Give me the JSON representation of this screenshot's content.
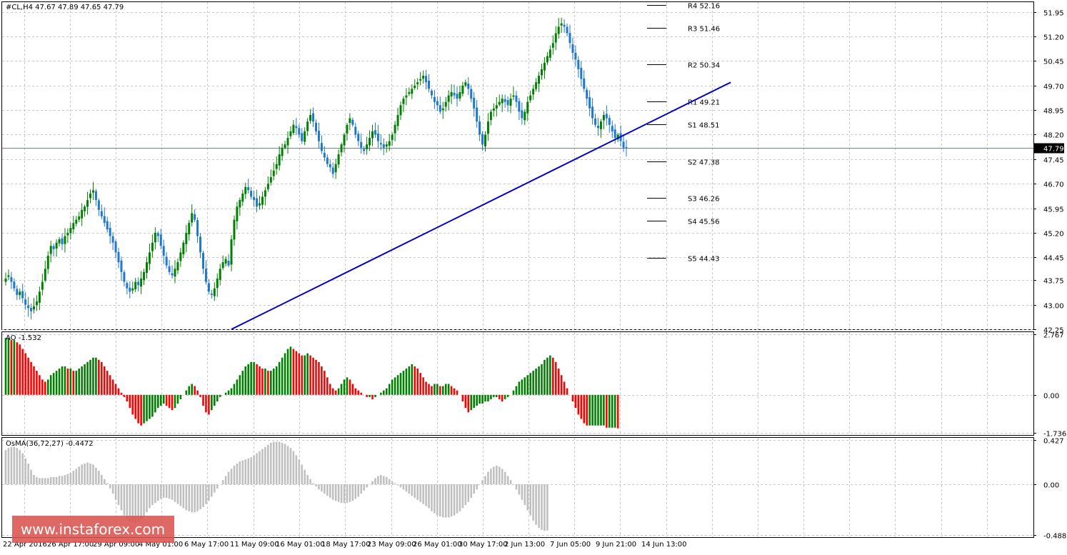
{
  "header": {
    "main_label": "#CL,H4  47.67 47.89 47.65 47.79",
    "ao_label": "AO -1.532",
    "osma_label": "OsMA(36,72,27) -0.4472"
  },
  "watermark": {
    "text": "www.instaforex.com"
  },
  "colors": {
    "bull": "#008000",
    "bear": "#1f77d0",
    "ao_up": "#008000",
    "ao_down": "#ff0000",
    "osma": "#c0c0c0",
    "trendline": "#0000c8",
    "grid": "#c8c8c8",
    "price_tag_bg": "#000000"
  },
  "chart_data": [
    {
      "type": "candlestick",
      "panel": "main",
      "symbol": "#CL",
      "timeframe": "H4",
      "last": {
        "open": 47.67,
        "high": 47.89,
        "low": 47.65,
        "close": 47.79
      },
      "current_price_label": "47.79",
      "y_ticks": [
        51.95,
        51.2,
        50.45,
        49.7,
        48.95,
        48.2,
        47.45,
        46.7,
        45.95,
        45.2,
        44.45,
        43.75,
        43.0,
        42.25
      ],
      "y_tick_labels": [
        "51.95",
        "51.20",
        "50.45",
        "49.70",
        "48.95",
        "48.20",
        "47.45",
        "46.70",
        "45.95",
        "45.20",
        "44.45",
        "43.75",
        "43.00",
        "42.25"
      ],
      "ylim": [
        42.25,
        52.25
      ],
      "x_ticks": [
        "22 Apr 2016",
        "26 Apr 17:00",
        "29 Apr 09:00",
        "4 May 01:00",
        "6 May 17:00",
        "11 May 09:00",
        "16 May 01:00",
        "18 May 17:00",
        "23 May 09:00",
        "26 May 01:00",
        "30 May 17:00",
        "2 Jun 13:00",
        "7 Jun 05:00",
        "9 Jun 21:00",
        "14 Jun 13:00"
      ],
      "closes": [
        43.8,
        43.9,
        43.7,
        43.5,
        43.3,
        43.4,
        43.2,
        43.0,
        42.9,
        42.8,
        42.95,
        43.1,
        43.4,
        43.7,
        44.1,
        44.5,
        44.8,
        44.7,
        44.9,
        45.0,
        44.85,
        45.1,
        45.2,
        45.35,
        45.5,
        45.6,
        45.7,
        45.9,
        46.0,
        46.2,
        46.4,
        46.5,
        46.2,
        45.9,
        45.7,
        45.5,
        45.3,
        45.1,
        44.9,
        44.6,
        44.3,
        44.0,
        43.7,
        43.5,
        43.4,
        43.5,
        43.7,
        43.6,
        43.8,
        44.0,
        44.3,
        44.6,
        44.9,
        45.2,
        45.1,
        44.8,
        44.5,
        44.2,
        44.0,
        43.9,
        44.1,
        44.3,
        44.6,
        44.9,
        45.2,
        45.5,
        45.8,
        45.6,
        45.1,
        44.6,
        44.1,
        43.7,
        43.4,
        43.3,
        43.5,
        43.8,
        44.1,
        44.3,
        44.4,
        44.2,
        45.0,
        45.6,
        46.0,
        46.2,
        46.4,
        46.6,
        46.5,
        46.3,
        46.2,
        46.0,
        46.1,
        46.3,
        46.5,
        46.7,
        46.9,
        47.1,
        47.3,
        47.6,
        47.8,
        47.9,
        48.1,
        48.3,
        48.5,
        48.4,
        48.2,
        48.0,
        48.3,
        48.6,
        48.8,
        48.6,
        48.3,
        48.0,
        47.7,
        47.5,
        47.3,
        47.2,
        47.0,
        47.3,
        47.6,
        47.9,
        48.2,
        48.5,
        48.7,
        48.5,
        48.2,
        48.0,
        47.8,
        47.7,
        47.9,
        48.1,
        48.3,
        48.2,
        48.0,
        47.9,
        47.8,
        47.9,
        48.0,
        48.2,
        48.5,
        48.8,
        49.1,
        49.3,
        49.4,
        49.5,
        49.6,
        49.7,
        49.8,
        49.9,
        50.0,
        49.8,
        49.6,
        49.4,
        49.2,
        49.1,
        48.9,
        49.0,
        49.2,
        49.4,
        49.5,
        49.4,
        49.3,
        49.5,
        49.7,
        49.8,
        49.6,
        49.3,
        49.0,
        48.6,
        48.2,
        47.9,
        48.2,
        48.6,
        48.9,
        49.0,
        49.1,
        49.2,
        49.3,
        49.2,
        49.1,
        49.3,
        49.4,
        49.2,
        48.9,
        48.7,
        48.9,
        49.2,
        49.4,
        49.6,
        49.8,
        50.0,
        50.2,
        50.4,
        50.6,
        50.8,
        51.0,
        51.3,
        51.5,
        51.6,
        51.5,
        51.3,
        51.0,
        50.7,
        50.5,
        50.2,
        49.9,
        49.6,
        49.3,
        49.0,
        48.7,
        48.5,
        48.4,
        48.6,
        48.8,
        48.7,
        48.5,
        48.3,
        48.1,
        48.2,
        48.0,
        47.8,
        47.79
      ]
    },
    {
      "type": "levels",
      "panel": "main",
      "levels": [
        {
          "label": "R4 52.16",
          "value": 52.16
        },
        {
          "label": "R3 51.46",
          "value": 51.46
        },
        {
          "label": "R2 50.34",
          "value": 50.34
        },
        {
          "label": "R1 49.21",
          "value": 49.21
        },
        {
          "label": "S1 48.51",
          "value": 48.51
        },
        {
          "label": "S2 47.38",
          "value": 47.38
        },
        {
          "label": "S3 46.26",
          "value": 46.26
        },
        {
          "label": "S4 45.56",
          "value": 45.56
        },
        {
          "label": "S5 44.43",
          "value": 44.43
        }
      ]
    },
    {
      "type": "line",
      "panel": "main",
      "role": "trendline",
      "points": [
        {
          "bar": 80,
          "value": 42.25
        },
        {
          "bar": 257,
          "value": 49.8
        }
      ]
    },
    {
      "type": "bar",
      "panel": "ao",
      "y_tick_labels": [
        "2.767",
        "0.00",
        "-1.736"
      ],
      "ylim": [
        -1.736,
        2.767
      ],
      "values": [
        2.6,
        2.6,
        2.5,
        2.5,
        2.4,
        2.3,
        2.1,
        1.9,
        1.7,
        1.5,
        1.3,
        1.1,
        0.9,
        0.7,
        0.6,
        0.7,
        0.9,
        1.0,
        1.1,
        1.2,
        1.3,
        1.3,
        1.2,
        1.2,
        1.1,
        1.1,
        1.2,
        1.3,
        1.4,
        1.5,
        1.6,
        1.7,
        1.7,
        1.6,
        1.5,
        1.3,
        1.1,
        0.9,
        0.7,
        0.5,
        0.3,
        0.1,
        -0.1,
        -0.3,
        -0.6,
        -0.9,
        -1.1,
        -1.3,
        -1.4,
        -1.3,
        -1.2,
        -1.1,
        -1.0,
        -0.8,
        -0.6,
        -0.5,
        -0.4,
        -0.5,
        -0.6,
        -0.7,
        -0.6,
        -0.4,
        -0.2,
        0.0,
        0.2,
        0.4,
        0.5,
        0.4,
        0.2,
        -0.1,
        -0.5,
        -0.8,
        -0.9,
        -0.7,
        -0.5,
        -0.3,
        -0.1,
        0.0,
        0.1,
        0.2,
        0.3,
        0.5,
        0.7,
        0.9,
        1.1,
        1.3,
        1.4,
        1.5,
        1.5,
        1.4,
        1.3,
        1.2,
        1.2,
        1.1,
        1.1,
        1.2,
        1.3,
        1.5,
        1.7,
        1.9,
        2.1,
        2.2,
        2.1,
        2.0,
        1.9,
        1.8,
        1.8,
        1.9,
        1.8,
        1.7,
        1.6,
        1.5,
        1.3,
        1.1,
        0.8,
        0.5,
        0.3,
        0.2,
        0.3,
        0.5,
        0.7,
        0.8,
        0.7,
        0.5,
        0.3,
        0.2,
        0.1,
        0.0,
        -0.1,
        -0.1,
        -0.2,
        -0.1,
        0.0,
        0.1,
        0.2,
        0.3,
        0.5,
        0.7,
        0.8,
        0.9,
        1.0,
        1.1,
        1.2,
        1.3,
        1.4,
        1.3,
        1.2,
        1.0,
        0.8,
        0.6,
        0.5,
        0.4,
        0.5,
        0.5,
        0.4,
        0.4,
        0.5,
        0.5,
        0.4,
        0.3,
        0.2,
        0.0,
        -0.3,
        -0.6,
        -0.8,
        -0.7,
        -0.6,
        -0.5,
        -0.4,
        -0.4,
        -0.3,
        -0.3,
        -0.2,
        -0.1,
        -0.1,
        -0.2,
        -0.3,
        -0.2,
        -0.1,
        0.0,
        0.2,
        0.4,
        0.6,
        0.7,
        0.8,
        0.9,
        1.0,
        1.1,
        1.2,
        1.3,
        1.4,
        1.6,
        1.7,
        1.8,
        1.7,
        1.5,
        1.2,
        0.9,
        0.6,
        0.3,
        0.0,
        -0.3,
        -0.6,
        -0.9,
        -1.1,
        -1.3,
        -1.4,
        -1.4,
        -1.4,
        -1.4,
        -1.4,
        -1.4,
        -1.4,
        -1.5,
        -1.5,
        -1.5,
        -1.5,
        -1.53
      ]
    },
    {
      "type": "bar",
      "panel": "osma",
      "y_tick_labels": [
        "0.427",
        "0.00",
        "-0.4888"
      ],
      "ylim": [
        -0.4888,
        0.427
      ],
      "values": [
        0.33,
        0.35,
        0.36,
        0.36,
        0.35,
        0.33,
        0.3,
        0.25,
        0.2,
        0.14,
        0.09,
        0.07,
        0.06,
        0.06,
        0.06,
        0.06,
        0.07,
        0.07,
        0.07,
        0.08,
        0.08,
        0.09,
        0.1,
        0.11,
        0.13,
        0.15,
        0.17,
        0.19,
        0.2,
        0.21,
        0.2,
        0.19,
        0.16,
        0.13,
        0.09,
        0.05,
        0.01,
        -0.04,
        -0.09,
        -0.15,
        -0.2,
        -0.25,
        -0.3,
        -0.33,
        -0.36,
        -0.37,
        -0.37,
        -0.36,
        -0.34,
        -0.31,
        -0.27,
        -0.23,
        -0.2,
        -0.18,
        -0.16,
        -0.14,
        -0.13,
        -0.13,
        -0.14,
        -0.15,
        -0.17,
        -0.19,
        -0.21,
        -0.23,
        -0.25,
        -0.26,
        -0.27,
        -0.27,
        -0.26,
        -0.24,
        -0.22,
        -0.19,
        -0.16,
        -0.12,
        -0.08,
        -0.04,
        0.0,
        0.04,
        0.08,
        0.12,
        0.15,
        0.18,
        0.2,
        0.22,
        0.23,
        0.24,
        0.25,
        0.26,
        0.28,
        0.3,
        0.32,
        0.34,
        0.36,
        0.38,
        0.4,
        0.41,
        0.41,
        0.41,
        0.4,
        0.39,
        0.37,
        0.35,
        0.32,
        0.28,
        0.24,
        0.19,
        0.14,
        0.09,
        0.05,
        0.01,
        -0.02,
        -0.05,
        -0.07,
        -0.09,
        -0.11,
        -0.13,
        -0.15,
        -0.16,
        -0.17,
        -0.18,
        -0.18,
        -0.18,
        -0.17,
        -0.16,
        -0.14,
        -0.12,
        -0.09,
        -0.06,
        -0.03,
        0.0,
        0.03,
        0.06,
        0.08,
        0.09,
        0.08,
        0.07,
        0.05,
        0.03,
        0.01,
        -0.01,
        -0.03,
        -0.05,
        -0.07,
        -0.09,
        -0.11,
        -0.13,
        -0.15,
        -0.17,
        -0.19,
        -0.21,
        -0.23,
        -0.26,
        -0.28,
        -0.3,
        -0.31,
        -0.32,
        -0.32,
        -0.32,
        -0.31,
        -0.3,
        -0.28,
        -0.26,
        -0.23,
        -0.2,
        -0.17,
        -0.13,
        -0.09,
        -0.05,
        0.0,
        0.04,
        0.08,
        0.12,
        0.15,
        0.17,
        0.18,
        0.17,
        0.15,
        0.12,
        0.08,
        0.04,
        0.0,
        -0.05,
        -0.1,
        -0.15,
        -0.2,
        -0.25,
        -0.3,
        -0.35,
        -0.39,
        -0.42,
        -0.44,
        -0.45,
        -0.446
      ]
    }
  ]
}
